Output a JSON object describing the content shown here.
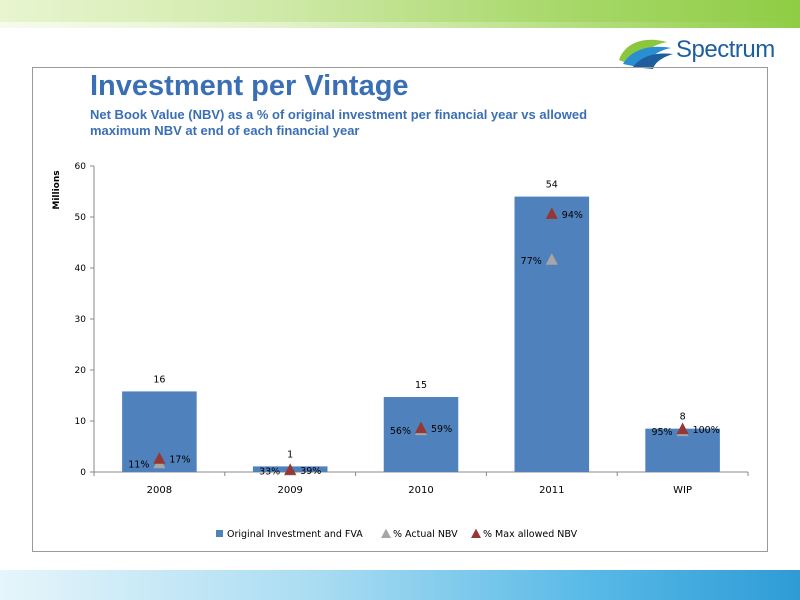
{
  "brand": {
    "name": "Spectrum"
  },
  "colors": {
    "bar": "#4f81bd",
    "actual_marker": "#a6a6a6",
    "max_marker": "#953735",
    "title": "#3a6fb5"
  },
  "chart_data": {
    "type": "bar",
    "title": "Investment per Vintage",
    "subtitle": "Net Book Value (NBV) as a % of original investment per financial year vs allowed maximum NBV at end of each financial year",
    "xlabel": "",
    "ylabel": "Millions",
    "ylim": [
      0,
      60
    ],
    "yticks": [
      0,
      10,
      20,
      30,
      40,
      50,
      60
    ],
    "grid": false,
    "legend_position": "bottom",
    "categories": [
      "2008",
      "2009",
      "2010",
      "2011",
      "WIP"
    ],
    "series": [
      {
        "name": "Original Investment and FVA",
        "kind": "bar",
        "values": [
          15.8,
          1.1,
          14.7,
          54.0,
          8.5
        ],
        "data_labels": [
          "16",
          "1",
          "15",
          "54",
          "8"
        ]
      },
      {
        "name": "% Actual NBV",
        "kind": "marker",
        "marker": "triangle",
        "percent": [
          11,
          33,
          56,
          77,
          95
        ],
        "values": [
          1.7,
          0.3,
          8.2,
          41.6,
          8.0
        ],
        "data_labels": [
          "11%",
          "33%",
          "56%",
          "77%",
          "95%"
        ]
      },
      {
        "name": "% Max allowed NBV",
        "kind": "marker",
        "marker": "triangle",
        "percent": [
          17,
          39,
          59,
          94,
          100
        ],
        "values": [
          2.6,
          0.4,
          8.6,
          50.6,
          8.4
        ],
        "data_labels": [
          "17%",
          "39%",
          "59%",
          "94%",
          "100%"
        ]
      }
    ]
  }
}
